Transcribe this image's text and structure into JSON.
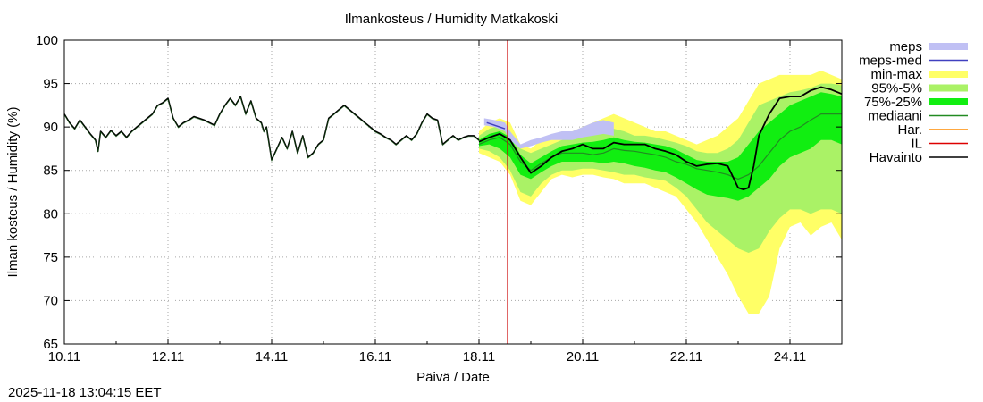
{
  "chart_data": {
    "type": "line",
    "title": "Ilmankosteus / Humidity  Matkakoski",
    "xlabel": "Päivä / Date",
    "ylabel": "Ilman kosteus / Humidity (%)",
    "ylim": [
      65,
      100
    ],
    "yticks": [
      65,
      70,
      75,
      80,
      85,
      90,
      95,
      100
    ],
    "xlim": [
      0,
      15
    ],
    "xticks": [
      {
        "x": 0,
        "label": "10.11"
      },
      {
        "x": 2,
        "label": "12.11"
      },
      {
        "x": 4,
        "label": "14.11"
      },
      {
        "x": 6,
        "label": "16.11"
      },
      {
        "x": 8,
        "label": "18.11"
      },
      {
        "x": 10,
        "label": "20.11"
      },
      {
        "x": 12,
        "label": "22.11"
      },
      {
        "x": 14,
        "label": "24.11"
      }
    ],
    "grid": true,
    "now_line": {
      "x": 8.55,
      "color": "#cc0000"
    },
    "legend": {
      "position": "right",
      "entries": [
        {
          "label": "meps",
          "style": "band",
          "color": "#c0c0f4"
        },
        {
          "label": "meps-med",
          "style": "line",
          "color": "#4040c0"
        },
        {
          "label": "min-max",
          "style": "band",
          "color": "#ffff66"
        },
        {
          "label": "95%-5%",
          "style": "band",
          "color": "#aaf266"
        },
        {
          "label": "75%-25%",
          "style": "band",
          "color": "#11ee11"
        },
        {
          "label": "mediaani",
          "style": "line",
          "color": "#228b22"
        },
        {
          "label": "Har.",
          "style": "line",
          "color": "#ff8c00"
        },
        {
          "label": "IL",
          "style": "line",
          "color": "#dd0000"
        },
        {
          "label": "Havainto",
          "style": "line",
          "color": "#000000"
        }
      ]
    },
    "series": [
      {
        "name": "Havainto (observed)",
        "type": "line",
        "color": "#000000",
        "x": [
          0,
          0.1,
          0.2,
          0.3,
          0.4,
          0.5,
          0.6,
          0.65,
          0.7,
          0.8,
          0.9,
          1.0,
          1.1,
          1.2,
          1.3,
          1.4,
          1.5,
          1.6,
          1.7,
          1.8,
          1.9,
          2.0,
          2.1,
          2.2,
          2.3,
          2.4,
          2.5,
          2.6,
          2.7,
          2.8,
          2.9,
          3.0,
          3.1,
          3.2,
          3.3,
          3.4,
          3.5,
          3.6,
          3.7,
          3.8,
          3.85,
          3.9,
          4.0,
          4.1,
          4.2,
          4.3,
          4.4,
          4.5,
          4.6,
          4.7,
          4.8,
          4.9,
          5.0,
          5.1,
          5.2,
          5.3,
          5.4,
          5.5,
          5.6,
          5.7,
          5.8,
          5.9,
          6.0,
          6.1,
          6.2,
          6.3,
          6.4,
          6.5,
          6.6,
          6.7,
          6.8,
          6.9,
          7.0,
          7.1,
          7.2,
          7.3,
          7.4,
          7.5,
          7.6,
          7.7,
          7.8,
          7.9,
          8.0
        ],
        "y": [
          91.5,
          90.5,
          89.8,
          90.8,
          90.0,
          89.2,
          88.5,
          87.2,
          89.5,
          88.8,
          89.6,
          89.0,
          89.5,
          88.8,
          89.5,
          90.0,
          90.5,
          91.0,
          91.5,
          92.5,
          92.8,
          93.3,
          91.0,
          90.0,
          90.5,
          90.8,
          91.2,
          91.0,
          90.8,
          90.5,
          90.2,
          91.5,
          92.5,
          93.3,
          92.5,
          93.5,
          91.5,
          93.0,
          91.0,
          90.5,
          89.5,
          90.0,
          86.2,
          87.5,
          88.8,
          87.5,
          89.5,
          87.0,
          89.0,
          86.5,
          87.0,
          88.0,
          88.5,
          91.0,
          91.5,
          92.0,
          92.5,
          92.0,
          91.5,
          91.0,
          90.5,
          90.0,
          89.5,
          89.2,
          88.8,
          88.5,
          88.0,
          88.5,
          89.0,
          88.5,
          89.2,
          90.5,
          91.5,
          91.0,
          90.8,
          88.0,
          88.5,
          89.0,
          88.5,
          88.8,
          89.0,
          89.0,
          88.5
        ]
      },
      {
        "name": "Havainto (forecast)",
        "type": "line",
        "color": "#000000",
        "x": [
          8.0,
          8.2,
          8.4,
          8.6,
          8.8,
          9.0,
          9.2,
          9.4,
          9.6,
          9.8,
          10.0,
          10.2,
          10.4,
          10.6,
          10.8,
          11.0,
          11.2,
          11.4,
          11.6,
          11.8,
          12.0,
          12.2,
          12.4,
          12.6,
          12.8,
          13.0,
          13.1,
          13.2,
          13.3,
          13.4,
          13.6,
          13.8,
          14.0,
          14.2,
          14.4,
          14.6,
          14.8,
          15.0
        ],
        "y": [
          88.3,
          88.8,
          89.2,
          88.5,
          86.5,
          84.7,
          85.5,
          86.5,
          87.2,
          87.5,
          88.0,
          87.5,
          87.5,
          88.2,
          88.0,
          88.0,
          88.0,
          87.5,
          87.2,
          86.8,
          86.0,
          85.5,
          85.7,
          85.8,
          85.5,
          83.0,
          82.8,
          83.0,
          85.5,
          89.0,
          91.5,
          93.3,
          93.5,
          93.5,
          94.2,
          94.6,
          94.3,
          93.8
        ]
      },
      {
        "name": "mediaani",
        "type": "line",
        "color": "#228b22",
        "x": [
          8.0,
          8.2,
          8.4,
          8.6,
          8.8,
          9.0,
          9.2,
          9.4,
          9.6,
          9.8,
          10.0,
          10.2,
          10.4,
          10.6,
          10.8,
          11.0,
          11.2,
          11.4,
          11.6,
          11.8,
          12.0,
          12.2,
          12.4,
          12.6,
          12.8,
          13.0,
          13.2,
          13.4,
          13.6,
          13.8,
          14.0,
          14.2,
          14.4,
          14.6,
          14.8,
          15.0
        ],
        "y": [
          88.0,
          88.5,
          88.8,
          88.0,
          86.0,
          85.0,
          85.8,
          86.5,
          87.0,
          87.0,
          87.0,
          86.8,
          87.0,
          87.5,
          87.3,
          87.2,
          87.0,
          86.8,
          86.5,
          86.0,
          85.7,
          85.2,
          85.0,
          84.8,
          84.5,
          84.0,
          84.5,
          85.5,
          87.0,
          88.5,
          89.5,
          90.0,
          90.8,
          91.5,
          91.5,
          91.5
        ]
      },
      {
        "name": "meps-med",
        "type": "line",
        "color": "#4040c0",
        "x": [
          8.15,
          8.3,
          8.5
        ],
        "y": [
          90.5,
          90.2,
          89.8
        ]
      },
      {
        "name": "meps",
        "type": "band",
        "color": "#c0c0f4",
        "x": [
          8.1,
          8.3,
          8.5,
          8.6,
          8.8,
          9.0,
          9.2,
          9.4,
          9.6,
          9.8,
          10.0,
          10.2,
          10.4,
          10.6
        ],
        "upper": [
          91.0,
          90.8,
          90.5,
          89.5,
          88.0,
          88.5,
          88.8,
          89.2,
          89.5,
          89.5,
          90.0,
          90.5,
          90.8,
          90.5
        ],
        "lower": [
          90.2,
          90.0,
          89.5,
          88.5,
          87.5,
          87.8,
          88.2,
          88.5,
          88.5,
          88.5,
          88.8,
          89.0,
          89.2,
          89.0
        ]
      },
      {
        "name": "min-max",
        "type": "band",
        "color": "#ffff66",
        "x": [
          8.0,
          8.2,
          8.4,
          8.6,
          8.8,
          9.0,
          9.2,
          9.4,
          9.6,
          9.8,
          10.0,
          10.2,
          10.4,
          10.6,
          10.8,
          11.0,
          11.2,
          11.4,
          11.6,
          11.8,
          12.0,
          12.2,
          12.4,
          12.6,
          12.8,
          13.0,
          13.2,
          13.4,
          13.6,
          13.8,
          14.0,
          14.2,
          14.4,
          14.6,
          14.8,
          15.0
        ],
        "upper": [
          89.5,
          90.5,
          91.0,
          90.5,
          88.0,
          87.5,
          88.5,
          89.0,
          89.5,
          89.5,
          90.0,
          90.5,
          91.0,
          91.5,
          91.0,
          90.5,
          90.0,
          89.5,
          89.5,
          89.0,
          88.5,
          88.0,
          88.5,
          89.0,
          90.0,
          91.0,
          93.0,
          95.0,
          95.5,
          96.0,
          96.0,
          96.0,
          96.0,
          96.5,
          96.0,
          95.5
        ],
        "lower": [
          87.0,
          86.5,
          86.0,
          84.5,
          81.5,
          81.0,
          82.5,
          84.0,
          84.5,
          84.2,
          84.5,
          84.5,
          84.2,
          84.0,
          83.5,
          83.5,
          83.5,
          83.0,
          82.5,
          82.0,
          80.5,
          79.0,
          77.0,
          75.0,
          73.0,
          70.5,
          68.5,
          68.5,
          70.5,
          76.0,
          78.5,
          79.0,
          77.5,
          78.5,
          79.0,
          77.0
        ]
      },
      {
        "name": "95%-5%",
        "type": "band",
        "color": "#aaf266",
        "x": [
          8.0,
          8.2,
          8.4,
          8.6,
          8.8,
          9.0,
          9.2,
          9.4,
          9.6,
          9.8,
          10.0,
          10.2,
          10.4,
          10.6,
          10.8,
          11.0,
          11.2,
          11.4,
          11.6,
          11.8,
          12.0,
          12.2,
          12.4,
          12.6,
          12.8,
          13.0,
          13.2,
          13.4,
          13.6,
          13.8,
          14.0,
          14.2,
          14.4,
          14.6,
          14.8,
          15.0
        ],
        "upper": [
          89.0,
          89.8,
          90.2,
          89.5,
          87.5,
          87.0,
          87.5,
          88.0,
          88.5,
          88.8,
          89.0,
          89.2,
          89.5,
          89.8,
          89.5,
          89.0,
          89.0,
          88.8,
          88.5,
          88.2,
          87.8,
          87.2,
          87.0,
          87.0,
          87.5,
          88.5,
          90.5,
          92.5,
          93.0,
          93.5,
          94.0,
          94.2,
          94.5,
          95.0,
          95.0,
          94.8
        ],
        "lower": [
          87.5,
          87.2,
          86.5,
          85.0,
          82.5,
          82.0,
          83.5,
          84.5,
          85.0,
          85.0,
          85.2,
          85.2,
          85.0,
          84.8,
          84.5,
          84.5,
          84.2,
          84.0,
          83.8,
          83.0,
          82.0,
          80.5,
          79.0,
          78.0,
          77.0,
          76.0,
          75.5,
          76.0,
          78.0,
          79.5,
          80.5,
          80.5,
          80.0,
          80.5,
          80.5,
          80.0
        ]
      },
      {
        "name": "75%-25%",
        "type": "band",
        "color": "#11ee11",
        "x": [
          8.0,
          8.2,
          8.4,
          8.6,
          8.8,
          9.0,
          9.2,
          9.4,
          9.6,
          9.8,
          10.0,
          10.2,
          10.4,
          10.6,
          10.8,
          11.0,
          11.2,
          11.4,
          11.6,
          11.8,
          12.0,
          12.2,
          12.4,
          12.6,
          12.8,
          13.0,
          13.2,
          13.4,
          13.6,
          13.8,
          14.0,
          14.2,
          14.4,
          14.6,
          14.8,
          15.0
        ],
        "upper": [
          88.5,
          89.2,
          89.5,
          88.8,
          86.8,
          85.8,
          86.5,
          87.2,
          87.8,
          88.0,
          88.2,
          88.3,
          88.5,
          88.8,
          88.5,
          88.3,
          88.2,
          88.0,
          87.8,
          87.4,
          86.8,
          86.2,
          86.0,
          86.0,
          86.0,
          86.5,
          88.0,
          89.5,
          90.5,
          91.5,
          92.5,
          93.0,
          93.5,
          94.0,
          93.8,
          93.5
        ],
        "lower": [
          87.8,
          88.0,
          87.5,
          86.5,
          84.5,
          84.0,
          84.8,
          85.5,
          86.0,
          86.0,
          86.0,
          86.0,
          85.8,
          86.0,
          85.8,
          85.5,
          85.3,
          85.0,
          84.8,
          84.2,
          83.5,
          82.8,
          82.2,
          82.0,
          81.8,
          81.5,
          82.0,
          83.0,
          84.0,
          85.5,
          86.5,
          87.0,
          87.5,
          88.5,
          88.5,
          88.0
        ]
      }
    ]
  },
  "footer": {
    "timestamp": "2025-11-18 13:04:15 EET"
  }
}
